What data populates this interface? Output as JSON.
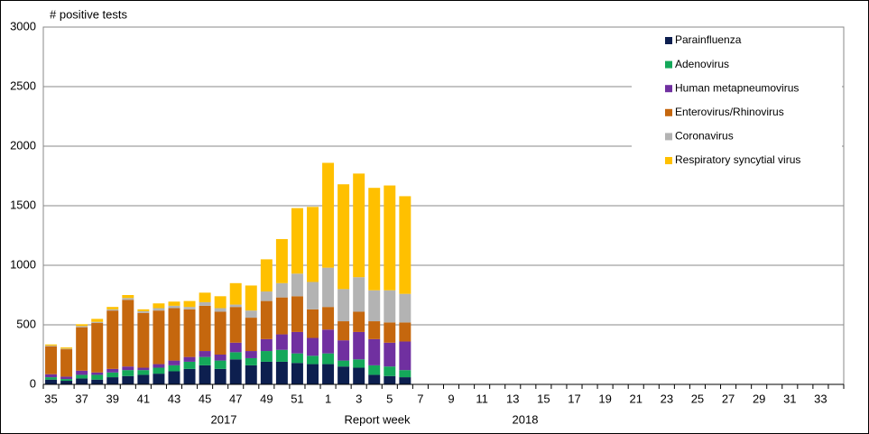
{
  "chart_data": {
    "type": "stacked_bar",
    "y_label": "# positive tests",
    "x_label": "Report week",
    "year_labels": [
      "2017",
      "2018"
    ],
    "categories": [
      "35",
      null,
      "37",
      null,
      "39",
      null,
      "41",
      null,
      "43",
      null,
      "45",
      null,
      "47",
      null,
      "49",
      null,
      "51",
      null,
      "1",
      null,
      "3",
      null,
      "5",
      null,
      "7",
      null,
      "9",
      null,
      "11",
      null,
      "13",
      null,
      "15",
      null,
      "17",
      null,
      "19",
      null,
      "21",
      null,
      "23",
      null,
      "25",
      null,
      "27",
      null,
      "29",
      null,
      "31",
      null,
      "33",
      null
    ],
    "ylim": [
      0,
      3000
    ],
    "yticks": [
      0,
      500,
      1000,
      1500,
      2000,
      2500,
      3000
    ],
    "grid": true,
    "legend_position": "upper right",
    "series": [
      {
        "name": "Parainfluenza",
        "color": "#0d1f4f",
        "values": [
          40,
          30,
          50,
          40,
          60,
          70,
          80,
          90,
          110,
          130,
          160,
          130,
          210,
          160,
          190,
          190,
          180,
          170,
          170,
          150,
          140,
          80,
          70,
          60,
          null,
          null,
          null,
          null,
          null,
          null,
          null,
          null,
          null,
          null,
          null,
          null,
          null,
          null,
          null,
          null,
          null,
          null,
          null,
          null,
          null,
          null,
          null,
          null,
          null,
          null,
          null,
          null
        ]
      },
      {
        "name": "Adenovirus",
        "color": "#14a85a",
        "values": [
          20,
          15,
          30,
          40,
          40,
          50,
          40,
          50,
          50,
          60,
          70,
          70,
          60,
          60,
          90,
          100,
          80,
          70,
          90,
          50,
          70,
          80,
          80,
          60,
          null,
          null,
          null,
          null,
          null,
          null,
          null,
          null,
          null,
          null,
          null,
          null,
          null,
          null,
          null,
          null,
          null,
          null,
          null,
          null,
          null,
          null,
          null,
          null,
          null,
          null,
          null,
          null
        ]
      },
      {
        "name": "Human metapneumovirus",
        "color": "#7030a0",
        "values": [
          25,
          20,
          35,
          20,
          30,
          30,
          20,
          30,
          40,
          40,
          50,
          50,
          80,
          60,
          100,
          130,
          180,
          150,
          200,
          170,
          230,
          220,
          200,
          240,
          null,
          null,
          null,
          null,
          null,
          null,
          null,
          null,
          null,
          null,
          null,
          null,
          null,
          null,
          null,
          null,
          null,
          null,
          null,
          null,
          null,
          null,
          null,
          null,
          null,
          null,
          null,
          null
        ]
      },
      {
        "name": "Enterovirus/Rhinovirus",
        "color": "#c5670e",
        "values": [
          235,
          230,
          365,
          415,
          490,
          560,
          460,
          450,
          440,
          400,
          380,
          360,
          300,
          280,
          320,
          310,
          300,
          240,
          190,
          160,
          170,
          150,
          170,
          160,
          null,
          null,
          null,
          null,
          null,
          null,
          null,
          null,
          null,
          null,
          null,
          null,
          null,
          null,
          null,
          null,
          null,
          null,
          null,
          null,
          null,
          null,
          null,
          null,
          null,
          null,
          null,
          null
        ]
      },
      {
        "name": "Coronavirus",
        "color": "#b3b3b3",
        "values": [
          5,
          5,
          10,
          10,
          10,
          15,
          15,
          20,
          20,
          20,
          30,
          30,
          20,
          60,
          80,
          120,
          190,
          230,
          330,
          270,
          290,
          260,
          270,
          240,
          null,
          null,
          null,
          null,
          null,
          null,
          null,
          null,
          null,
          null,
          null,
          null,
          null,
          null,
          null,
          null,
          null,
          null,
          null,
          null,
          null,
          null,
          null,
          null,
          null,
          null,
          null,
          null
        ]
      },
      {
        "name": "Respiratory syncytial virus",
        "color": "#ffc000",
        "values": [
          10,
          10,
          15,
          25,
          20,
          25,
          15,
          40,
          35,
          50,
          80,
          100,
          180,
          210,
          270,
          370,
          550,
          630,
          880,
          880,
          870,
          860,
          880,
          820,
          null,
          null,
          null,
          null,
          null,
          null,
          null,
          null,
          null,
          null,
          null,
          null,
          null,
          null,
          null,
          null,
          null,
          null,
          null,
          null,
          null,
          null,
          null,
          null,
          null,
          null,
          null,
          null
        ]
      }
    ]
  }
}
